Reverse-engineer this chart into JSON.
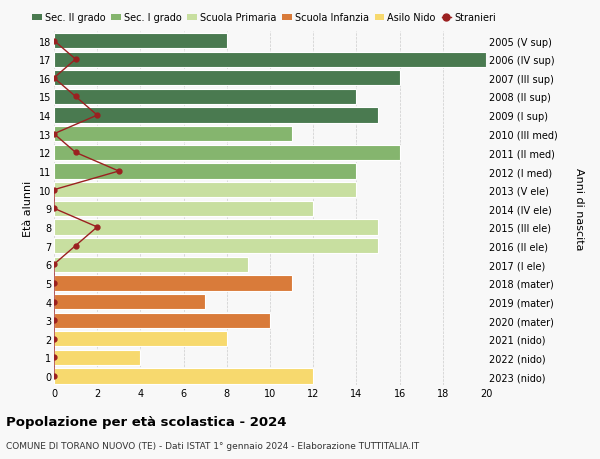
{
  "ages": [
    0,
    1,
    2,
    3,
    4,
    5,
    6,
    7,
    8,
    9,
    10,
    11,
    12,
    13,
    14,
    15,
    16,
    17,
    18
  ],
  "right_labels": [
    "2023 (nido)",
    "2022 (nido)",
    "2021 (nido)",
    "2020 (mater)",
    "2019 (mater)",
    "2018 (mater)",
    "2017 (I ele)",
    "2016 (II ele)",
    "2015 (III ele)",
    "2014 (IV ele)",
    "2013 (V ele)",
    "2012 (I med)",
    "2011 (II med)",
    "2010 (III med)",
    "2009 (I sup)",
    "2008 (II sup)",
    "2007 (III sup)",
    "2006 (IV sup)",
    "2005 (V sup)"
  ],
  "bar_values": [
    12,
    4,
    8,
    10,
    7,
    11,
    9,
    15,
    15,
    12,
    14,
    14,
    16,
    11,
    15,
    14,
    16,
    20,
    8
  ],
  "bar_colors": [
    "#f7d96e",
    "#f7d96e",
    "#f7d96e",
    "#d97b3a",
    "#d97b3a",
    "#d97b3a",
    "#c8dfa0",
    "#c8dfa0",
    "#c8dfa0",
    "#c8dfa0",
    "#c8dfa0",
    "#85b56e",
    "#85b56e",
    "#85b56e",
    "#4a7a50",
    "#4a7a50",
    "#4a7a50",
    "#4a7a50",
    "#4a7a50"
  ],
  "stranieri_values": [
    0,
    0,
    0,
    0,
    0,
    0,
    0,
    1,
    2,
    0,
    0,
    3,
    1,
    0,
    2,
    1,
    0,
    1,
    0
  ],
  "legend_labels": [
    "Sec. II grado",
    "Sec. I grado",
    "Scuola Primaria",
    "Scuola Infanzia",
    "Asilo Nido",
    "Stranieri"
  ],
  "legend_colors": [
    "#4a7a50",
    "#85b56e",
    "#c8dfa0",
    "#d97b3a",
    "#f7d96e",
    "#9b2020"
  ],
  "title1": "Popolazione per età scolastica - 2024",
  "title2": "COMUNE DI TORANO NUOVO (TE) - Dati ISTAT 1° gennaio 2024 - Elaborazione TUTTITALIA.IT",
  "ylabel_left": "Età alunni",
  "ylabel_right": "Anni di nascita",
  "xlim": [
    0,
    20
  ],
  "background_color": "#f8f8f8"
}
